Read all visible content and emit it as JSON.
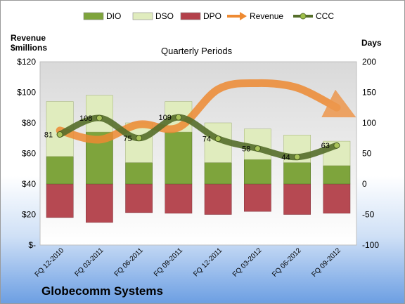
{
  "chart_data": {
    "type": "bar",
    "title": "Quarterly Periods",
    "company": "Globecomm Systems",
    "left_axis_title": "Revenue\n$millions",
    "right_axis_title": "Days",
    "categories": [
      "FQ 12-2010",
      "FQ 03-2011",
      "FQ 06-2011",
      "FQ 09-2011",
      "FQ 12-2011",
      "FQ 03-2012",
      "FQ 06-2012",
      "FQ 09-2012"
    ],
    "left_axis": {
      "min": 0,
      "max": 120,
      "ticks": [
        0,
        20,
        40,
        60,
        80,
        100,
        120
      ],
      "tick_labels": [
        "$-",
        "$20",
        "$40",
        "$60",
        "$80",
        "$100",
        "$120"
      ]
    },
    "right_axis": {
      "min": -100,
      "max": 200,
      "ticks": [
        -100,
        -50,
        0,
        50,
        100,
        150,
        200
      ],
      "tick_labels": [
        "-100",
        "-50",
        "0",
        "50",
        "100",
        "150",
        "200"
      ]
    },
    "series": [
      {
        "name": "DIO",
        "axis": "right",
        "kind": "stacked-bar",
        "color": "#7ea43c",
        "values": [
          45,
          85,
          35,
          85,
          35,
          40,
          35,
          30
        ]
      },
      {
        "name": "DSO",
        "axis": "right",
        "kind": "stacked-bar",
        "color": "#e0ecbe",
        "values": [
          90,
          60,
          65,
          50,
          65,
          50,
          45,
          40
        ]
      },
      {
        "name": "DPO",
        "axis": "right",
        "kind": "bar-below-zero",
        "color": "#b3404a",
        "values": [
          -55,
          -63,
          -47,
          -48,
          -50,
          -45,
          -50,
          -48
        ]
      },
      {
        "name": "Revenue",
        "axis": "left",
        "kind": "line",
        "color": "#ee8a32",
        "values": [
          75,
          69,
          79,
          77,
          102,
          106,
          103,
          90
        ]
      },
      {
        "name": "CCC",
        "axis": "right",
        "kind": "line",
        "color": "#556e2a",
        "values": [
          81,
          108,
          75,
          109,
          74,
          58,
          44,
          63
        ],
        "labels": [
          "81",
          "108",
          "75",
          "109",
          "74",
          "58",
          "44",
          "63"
        ]
      }
    ],
    "legend_position": "top",
    "grid": false
  }
}
